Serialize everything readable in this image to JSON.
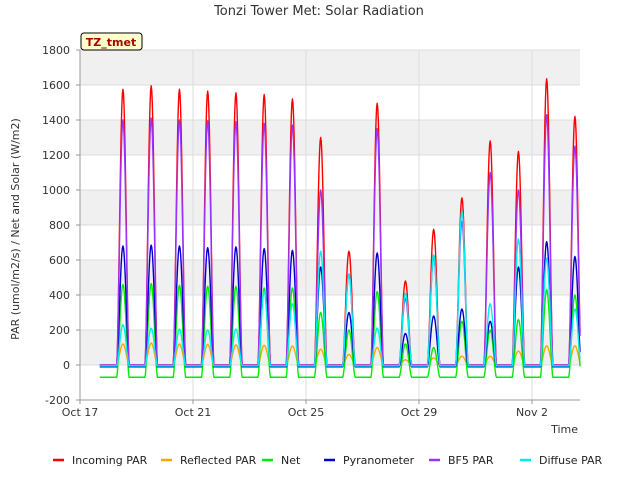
{
  "chart_data": {
    "type": "line",
    "title": "Tonzi Tower Met: Solar Radiation",
    "xlabel": "Time",
    "ylabel": "PAR (umol/m2/s) / Net and Solar (W/m2)",
    "badge": "TZ_tmet",
    "xlim": [
      0,
      17.7
    ],
    "ylim": [
      -200,
      1800
    ],
    "yticks": [
      -200,
      0,
      200,
      400,
      600,
      800,
      1000,
      1200,
      1400,
      1600,
      1800
    ],
    "xticks": [
      {
        "day": 0,
        "label": "Oct 17"
      },
      {
        "day": 4,
        "label": "Oct 21"
      },
      {
        "day": 8,
        "label": "Oct 25"
      },
      {
        "day": 12,
        "label": "Oct 29"
      },
      {
        "day": 16,
        "label": "Nov 2"
      }
    ],
    "grid": true,
    "legend_position": "bottom",
    "daily_peaks": [
      {
        "day": 1,
        "incoming": 1575,
        "bf5": 1400,
        "pyranometer": 680,
        "diffuse": 230,
        "reflected": 120,
        "net": 460
      },
      {
        "day": 2,
        "incoming": 1595,
        "bf5": 1410,
        "pyranometer": 685,
        "diffuse": 210,
        "reflected": 125,
        "net": 465
      },
      {
        "day": 3,
        "incoming": 1575,
        "bf5": 1400,
        "pyranometer": 680,
        "diffuse": 205,
        "reflected": 120,
        "net": 455
      },
      {
        "day": 4,
        "incoming": 1565,
        "bf5": 1395,
        "pyranometer": 670,
        "diffuse": 200,
        "reflected": 118,
        "net": 450
      },
      {
        "day": 5,
        "incoming": 1555,
        "bf5": 1390,
        "pyranometer": 675,
        "diffuse": 205,
        "reflected": 115,
        "net": 450
      },
      {
        "day": 6,
        "incoming": 1545,
        "bf5": 1380,
        "pyranometer": 665,
        "diffuse": 420,
        "reflected": 112,
        "net": 440
      },
      {
        "day": 7,
        "incoming": 1520,
        "bf5": 1370,
        "pyranometer": 655,
        "diffuse": 350,
        "reflected": 108,
        "net": 440
      },
      {
        "day": 8,
        "incoming": 1300,
        "bf5": 1000,
        "pyranometer": 560,
        "diffuse": 650,
        "reflected": 90,
        "net": 300
      },
      {
        "day": 9,
        "incoming": 650,
        "bf5": 520,
        "pyranometer": 300,
        "diffuse": 520,
        "reflected": 60,
        "net": 200
      },
      {
        "day": 10,
        "incoming": 1495,
        "bf5": 1350,
        "pyranometer": 640,
        "diffuse": 210,
        "reflected": 100,
        "net": 420
      },
      {
        "day": 11,
        "incoming": 480,
        "bf5": 380,
        "pyranometer": 180,
        "diffuse": 410,
        "reflected": 30,
        "net": 120
      },
      {
        "day": 12,
        "incoming": 775,
        "bf5": 620,
        "pyranometer": 280,
        "diffuse": 630,
        "reflected": 40,
        "net": 100
      },
      {
        "day": 13,
        "incoming": 955,
        "bf5": 820,
        "pyranometer": 320,
        "diffuse": 880,
        "reflected": 50,
        "net": 250
      },
      {
        "day": 14,
        "incoming": 1280,
        "bf5": 1100,
        "pyranometer": 250,
        "diffuse": 350,
        "reflected": 50,
        "net": 200
      },
      {
        "day": 15,
        "incoming": 1220,
        "bf5": 1000,
        "pyranometer": 560,
        "diffuse": 720,
        "reflected": 80,
        "net": 260
      },
      {
        "day": 16,
        "incoming": 1635,
        "bf5": 1430,
        "pyranometer": 705,
        "diffuse": 610,
        "reflected": 110,
        "net": 430
      },
      {
        "day": 17,
        "incoming": 1420,
        "bf5": 1250,
        "pyranometer": 620,
        "diffuse": 320,
        "reflected": 110,
        "net": 400
      }
    ],
    "night_values": {
      "incoming": 0,
      "bf5": 0,
      "pyranometer": -10,
      "diffuse": -5,
      "reflected": 0,
      "net": -70
    },
    "series": [
      {
        "name": "Incoming PAR",
        "key": "incoming",
        "color": "#ff0000"
      },
      {
        "name": "Reflected PAR",
        "key": "reflected",
        "color": "#ffa500"
      },
      {
        "name": "Net",
        "key": "net",
        "color": "#00ee00"
      },
      {
        "name": "Pyranometer",
        "key": "pyranometer",
        "color": "#0000cc"
      },
      {
        "name": "BF5 PAR",
        "key": "bf5",
        "color": "#9933ff"
      },
      {
        "name": "Diffuse PAR",
        "key": "diffuse",
        "color": "#00eeee"
      }
    ],
    "draw_order": [
      "incoming",
      "reflected",
      "net",
      "pyranometer",
      "bf5",
      "diffuse"
    ]
  }
}
